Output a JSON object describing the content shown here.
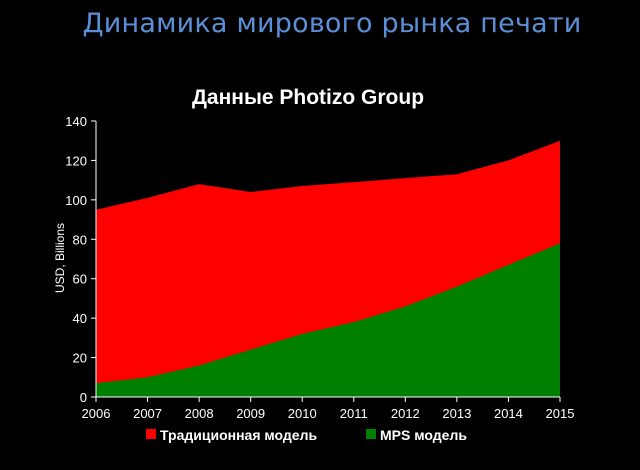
{
  "slide_title": "Динамика мирового рынка печати",
  "chart_data": {
    "type": "area",
    "title": "Данные Photizo Group",
    "xlabel": "",
    "ylabel": "USD, Billions",
    "x": [
      2006,
      2007,
      2008,
      2009,
      2010,
      2011,
      2012,
      2013,
      2014,
      2015
    ],
    "ylim": [
      0,
      140
    ],
    "yticks": [
      0,
      20,
      40,
      60,
      80,
      100,
      120,
      140
    ],
    "grid": false,
    "legend_position": "bottom",
    "series": [
      {
        "name": "Традиционная модель",
        "color": "#ff0000",
        "values": [
          95,
          101,
          108,
          104,
          107,
          109,
          111,
          113,
          120,
          130
        ]
      },
      {
        "name": "MPS модель",
        "color": "#008000",
        "values": [
          7,
          10,
          16,
          24,
          32,
          38,
          46,
          56,
          67,
          78
        ]
      }
    ]
  }
}
